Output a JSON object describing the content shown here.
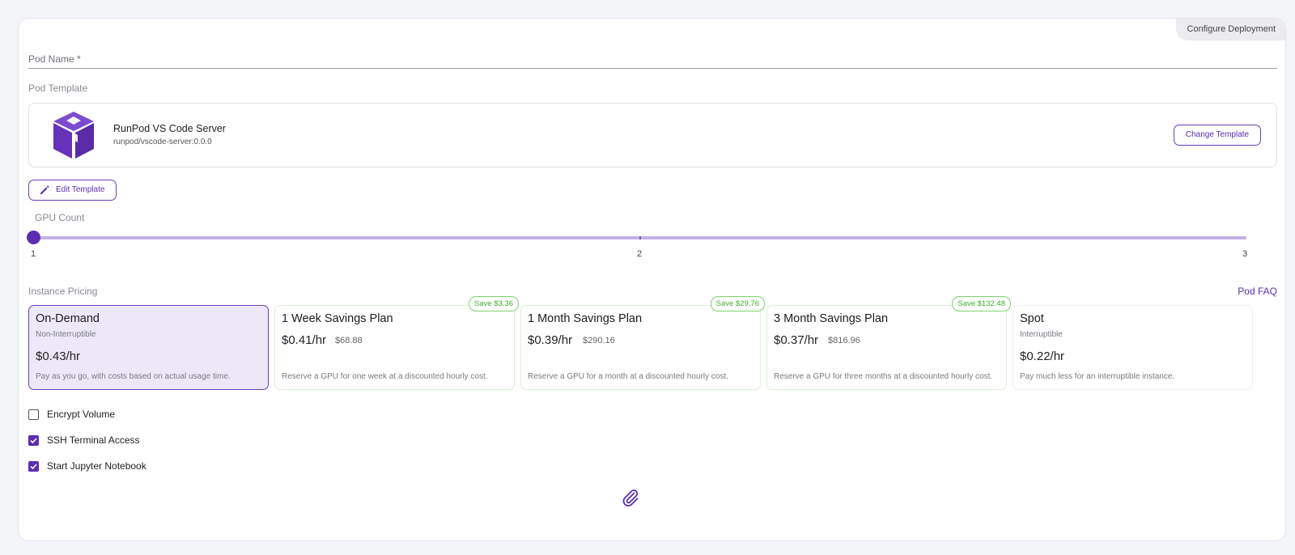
{
  "header": {
    "configure_tab": "Configure Deployment"
  },
  "form": {
    "pod_name_label": "Pod Name *",
    "pod_template_label": "Pod Template"
  },
  "template": {
    "name": "RunPod VS Code Server",
    "image": "runpod/vscode-server:0.0.0",
    "icon": "cube-icon",
    "change_button": "Change Template",
    "edit_button": "Edit Template"
  },
  "gpu": {
    "label": "GPU Count",
    "ticks": [
      "1",
      "2",
      "3"
    ],
    "value": 1
  },
  "pricing": {
    "label": "Instance Pricing",
    "faq_link": "Pod FAQ",
    "plans": [
      {
        "title": "On-Demand",
        "subtitle": "Non-Interruptible",
        "price": "$0.43/hr",
        "description": "Pay as you go, with costs based on actual usage time.",
        "selected": true
      },
      {
        "title": "1 Week Savings Plan",
        "price": "$0.41/hr",
        "total": "$68.88",
        "description": "Reserve a GPU for one week at a discounted hourly cost.",
        "badge": "Save $3.36"
      },
      {
        "title": "1 Month Savings Plan",
        "price": "$0.39/hr",
        "total": "$290.16",
        "description": "Reserve a GPU for a month at a discounted hourly cost.",
        "badge": "Save $29.76"
      },
      {
        "title": "3 Month Savings Plan",
        "price": "$0.37/hr",
        "total": "$816.96",
        "description": "Reserve a GPU for three months at a discounted hourly cost.",
        "badge": "Save $132.48"
      },
      {
        "title": "Spot",
        "subtitle": "Interruptible",
        "price": "$0.22/hr",
        "description": "Pay much less for an interruptible instance."
      }
    ]
  },
  "options": [
    {
      "label": "Encrypt Volume",
      "checked": false
    },
    {
      "label": "SSH Terminal Access",
      "checked": true
    },
    {
      "label": "Start Jupyter Notebook",
      "checked": true
    }
  ],
  "colors": {
    "accent": "#5b2db0",
    "save_green": "#3fae2c",
    "selected_bg": "#ede8f7"
  },
  "footer": {
    "icon": "paperclip-icon"
  }
}
